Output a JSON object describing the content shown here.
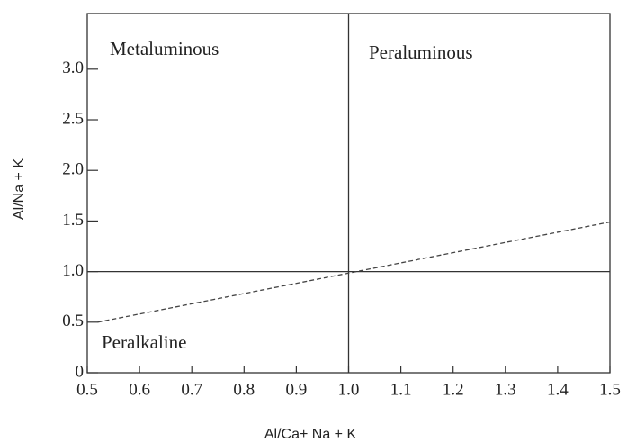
{
  "chart_data": {
    "type": "line",
    "x_label": "Al/Ca+ Na + K",
    "y_label": "Al/Na + K",
    "xlim": [
      0.5,
      1.5
    ],
    "ylim": [
      0,
      3.55
    ],
    "xticks": [
      0.5,
      0.6,
      0.7,
      0.8,
      0.9,
      {
        "value": 1,
        "label": "1.0"
      },
      1.1,
      1.2,
      1.3,
      1.4,
      1.5
    ],
    "yticks": [
      0,
      0.5,
      {
        "value": 1,
        "label": "1.0"
      },
      1.5,
      {
        "value": 2,
        "label": "2.0"
      },
      2.5,
      {
        "value": 3,
        "label": "3.0"
      }
    ],
    "vlines": [
      1
    ],
    "hlines": [
      1
    ],
    "x": [
      0.52,
      1.5
    ],
    "series": [
      {
        "color": "#444",
        "dashed": true,
        "values": [
          0.5,
          1.49
        ]
      }
    ],
    "annotations": [
      "Metaluminous",
      "Peraluminous",
      "Peralkaline"
    ]
  }
}
